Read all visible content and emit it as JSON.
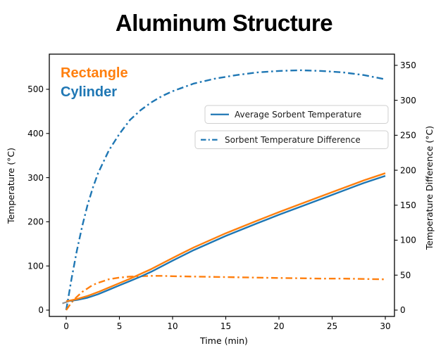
{
  "chart_data": {
    "type": "line",
    "title": "Aluminum Structure",
    "xlabel": "Time (min)",
    "ylabel_left": "Temperature (°C)",
    "ylabel_right": "Temperature Difference (°C)",
    "xlim": [
      -1.59,
      30.86
    ],
    "ylim_left": [
      -14.3,
      579.6
    ],
    "ylim_right": [
      -9.05,
      366.0
    ],
    "x_ticks": [
      0,
      5,
      10,
      15,
      20,
      25,
      30
    ],
    "y_ticks_left": [
      0,
      100,
      200,
      300,
      400,
      500
    ],
    "y_ticks_right": [
      0,
      50,
      100,
      150,
      200,
      250,
      300,
      350
    ],
    "grid": false,
    "annotations": [
      {
        "label": "Rectangle",
        "color": "#ff7f0e"
      },
      {
        "label": "Cylinder",
        "color": "#1f77b4"
      }
    ],
    "legend": [
      {
        "label": "Average Sorbent Temperature",
        "style": "solid",
        "color": "#1f77b4"
      },
      {
        "label": "Sorbent Temperature Difference",
        "style": "dashdot",
        "color": "#1f77b4"
      }
    ],
    "series": [
      {
        "id": "temp-diff-cylinder",
        "name": "Sorbent Temperature Difference (Cylinder)",
        "axis": "right",
        "color": "#1f77b4",
        "style": "dashdot",
        "x": [
          0,
          0.5,
          1,
          1.5,
          2,
          2.5,
          3,
          4,
          5,
          6,
          7,
          8,
          9,
          10,
          12,
          14,
          16,
          18,
          20,
          22,
          24,
          26,
          28,
          30
        ],
        "y": [
          0,
          45,
          85,
          120,
          150,
          175,
          196,
          228,
          252,
          272,
          286,
          297,
          306,
          313,
          324,
          331,
          336,
          340,
          342,
          343,
          342,
          340,
          336,
          330
        ]
      },
      {
        "id": "temp-diff-rectangle",
        "name": "Sorbent Temperature Difference (Rectangle)",
        "axis": "right",
        "color": "#ff7f0e",
        "style": "dashdot",
        "x": [
          0,
          0.5,
          1,
          1.5,
          2,
          2.5,
          3,
          4,
          5,
          6,
          7,
          8,
          9,
          10,
          12,
          14,
          16,
          18,
          20,
          22,
          24,
          26,
          28,
          30
        ],
        "y": [
          0,
          11,
          19,
          26,
          31,
          36,
          39,
          44,
          46.5,
          48,
          48.5,
          49,
          49,
          48.5,
          48,
          47.5,
          47,
          46.5,
          46,
          45.5,
          45,
          45,
          44.5,
          44
        ]
      },
      {
        "id": "avg-temp-cylinder",
        "name": "Average Sorbent Temperature (Cylinder)",
        "axis": "left",
        "color": "#1f77b4",
        "style": "solid",
        "x": [
          0,
          1,
          2,
          3,
          4,
          5,
          6,
          7,
          8,
          10,
          12,
          15,
          18,
          20,
          22,
          25,
          28,
          30
        ],
        "y": [
          20,
          23,
          28,
          36,
          46,
          56,
          66,
          76,
          87,
          112,
          136,
          168,
          197,
          216,
          234,
          261,
          288,
          304
        ]
      },
      {
        "id": "avg-temp-rectangle",
        "name": "Average Sorbent Temperature (Rectangle)",
        "axis": "left",
        "color": "#ff7f0e",
        "style": "solid",
        "x": [
          0,
          1,
          2,
          3,
          4,
          5,
          6,
          7,
          8,
          10,
          12,
          15,
          18,
          20,
          22,
          25,
          28,
          30
        ],
        "y": [
          20,
          25,
          32,
          41,
          51,
          61,
          71,
          82,
          93,
          118,
          142,
          174,
          203,
          222,
          240,
          267,
          294,
          310
        ]
      }
    ]
  }
}
